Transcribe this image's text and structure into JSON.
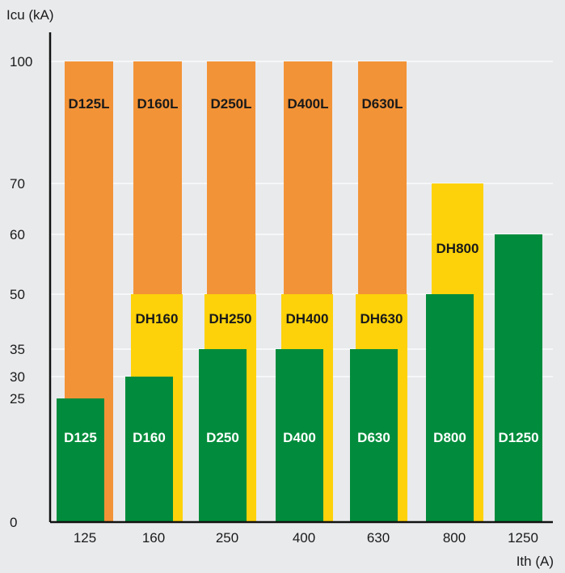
{
  "chart_data": {
    "type": "bar",
    "ylabel": "Icu (kA)",
    "xlabel": "Ith (A)",
    "ylim": [
      0,
      100
    ],
    "yticks": [
      0,
      25,
      30,
      35,
      50,
      60,
      70,
      100
    ],
    "categories": [
      "125",
      "160",
      "250",
      "400",
      "630",
      "800",
      "1250"
    ],
    "grid": "horizontal lines at 30, 35, 50, 60, 70 and 100",
    "legend": "none",
    "series": [
      {
        "color": "#f39337",
        "values": [
          100,
          100,
          100,
          100,
          100,
          null,
          null
        ],
        "labels": [
          "D125L",
          "D160L",
          "D250L",
          "D400L",
          "D630L",
          "",
          ""
        ]
      },
      {
        "color": "#fdd20a",
        "values": [
          null,
          50,
          50,
          50,
          50,
          70,
          null
        ],
        "labels": [
          "",
          "DH160",
          "DH250",
          "DH400",
          "DH630",
          "DH800",
          ""
        ]
      },
      {
        "color": "#008c3c",
        "values": [
          25,
          30,
          35,
          35,
          35,
          50,
          60
        ],
        "labels": [
          "D125",
          "D160",
          "D250",
          "D400",
          "D630",
          "D800",
          "D1250"
        ]
      }
    ]
  }
}
